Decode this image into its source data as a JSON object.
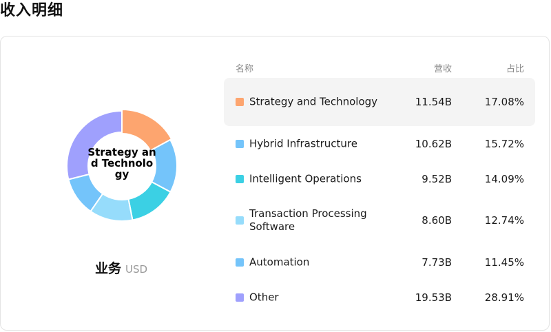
{
  "page": {
    "title": "收入明细"
  },
  "summary": {
    "segment_label": "业务",
    "currency": "USD"
  },
  "table": {
    "headers": {
      "name": "名称",
      "revenue": "营收",
      "share": "占比"
    },
    "rows": [
      {
        "name": "Strategy and Technology",
        "revenue": "11.54B",
        "share": "17.08%",
        "color": "#FDA56F",
        "highlighted": true
      },
      {
        "name": "Hybrid Infrastructure",
        "revenue": "10.62B",
        "share": "15.72%",
        "color": "#74C4FA",
        "highlighted": false
      },
      {
        "name": "Intelligent Operations",
        "revenue": "9.52B",
        "share": "14.09%",
        "color": "#3BD0E4",
        "highlighted": false
      },
      {
        "name": "Transaction Processing Software",
        "revenue": "8.60B",
        "share": "12.74%",
        "color": "#96DCFB",
        "highlighted": false
      },
      {
        "name": "Automation",
        "revenue": "7.73B",
        "share": "11.45%",
        "color": "#74C4FA",
        "highlighted": false
      },
      {
        "name": "Other",
        "revenue": "19.53B",
        "share": "28.91%",
        "color": "#9FA0FD",
        "highlighted": false
      }
    ]
  },
  "chart_data": {
    "type": "pie",
    "center_label": "Strategy and Technology",
    "categories": [
      "Strategy and Technology",
      "Hybrid Infrastructure",
      "Intelligent Operations",
      "Transaction Processing Software",
      "Automation",
      "Other"
    ],
    "values": [
      11.54,
      10.62,
      9.52,
      8.6,
      7.73,
      19.53
    ],
    "percentages": [
      17.08,
      15.72,
      14.09,
      12.74,
      11.45,
      28.91
    ],
    "unit": "B USD",
    "colors": [
      "#FDA56F",
      "#74C4FA",
      "#3BD0E4",
      "#96DCFB",
      "#74C4FA",
      "#9FA0FD"
    ],
    "highlighted_slice": "Strategy and Technology"
  }
}
